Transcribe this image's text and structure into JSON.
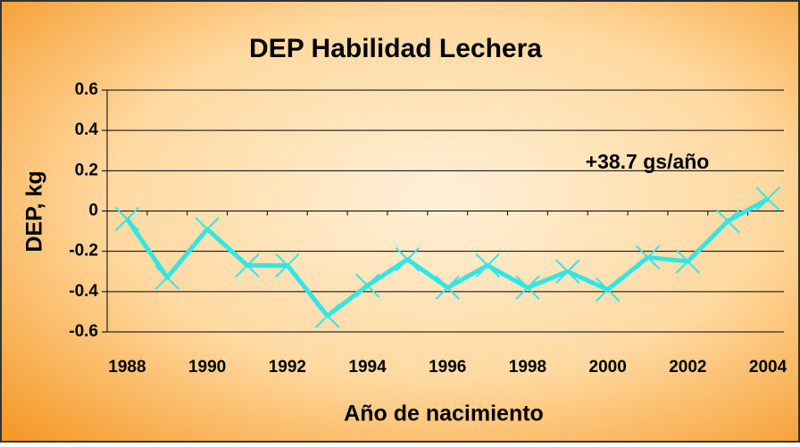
{
  "chart_data": {
    "type": "line",
    "title": "DEP  Habilidad Lechera",
    "x_label": "Año de nacimiento",
    "y_label": "DEP, kg",
    "annotation": "+38.7 gs/año",
    "x": [
      1988,
      1989,
      1990,
      1991,
      1992,
      1993,
      1994,
      1995,
      1996,
      1997,
      1998,
      1999,
      2000,
      2001,
      2002,
      2003,
      2004
    ],
    "series": [
      {
        "name": "DEP",
        "color": "#33e6e6",
        "values": [
          -0.04,
          -0.33,
          -0.09,
          -0.27,
          -0.27,
          -0.52,
          -0.37,
          -0.24,
          -0.38,
          -0.27,
          -0.38,
          -0.3,
          -0.39,
          -0.23,
          -0.25,
          -0.05,
          0.06
        ]
      }
    ],
    "xlim": [
      1987.5,
      2004.4
    ],
    "xticks": [
      1988,
      1990,
      1992,
      1994,
      1996,
      1998,
      2000,
      2002,
      2004
    ],
    "ylim": [
      -0.6,
      0.6
    ],
    "yticks": [
      {
        "value": -0.6,
        "label": "-0.6"
      },
      {
        "value": -0.4,
        "label": "-0.4"
      },
      {
        "value": -0.2,
        "label": "-0.2"
      },
      0,
      {
        "value": 0.2,
        "label": "0.2"
      },
      {
        "value": 0.4,
        "label": "0.4"
      },
      {
        "value": 0.6,
        "label": "0.6"
      }
    ],
    "grid": true
  }
}
